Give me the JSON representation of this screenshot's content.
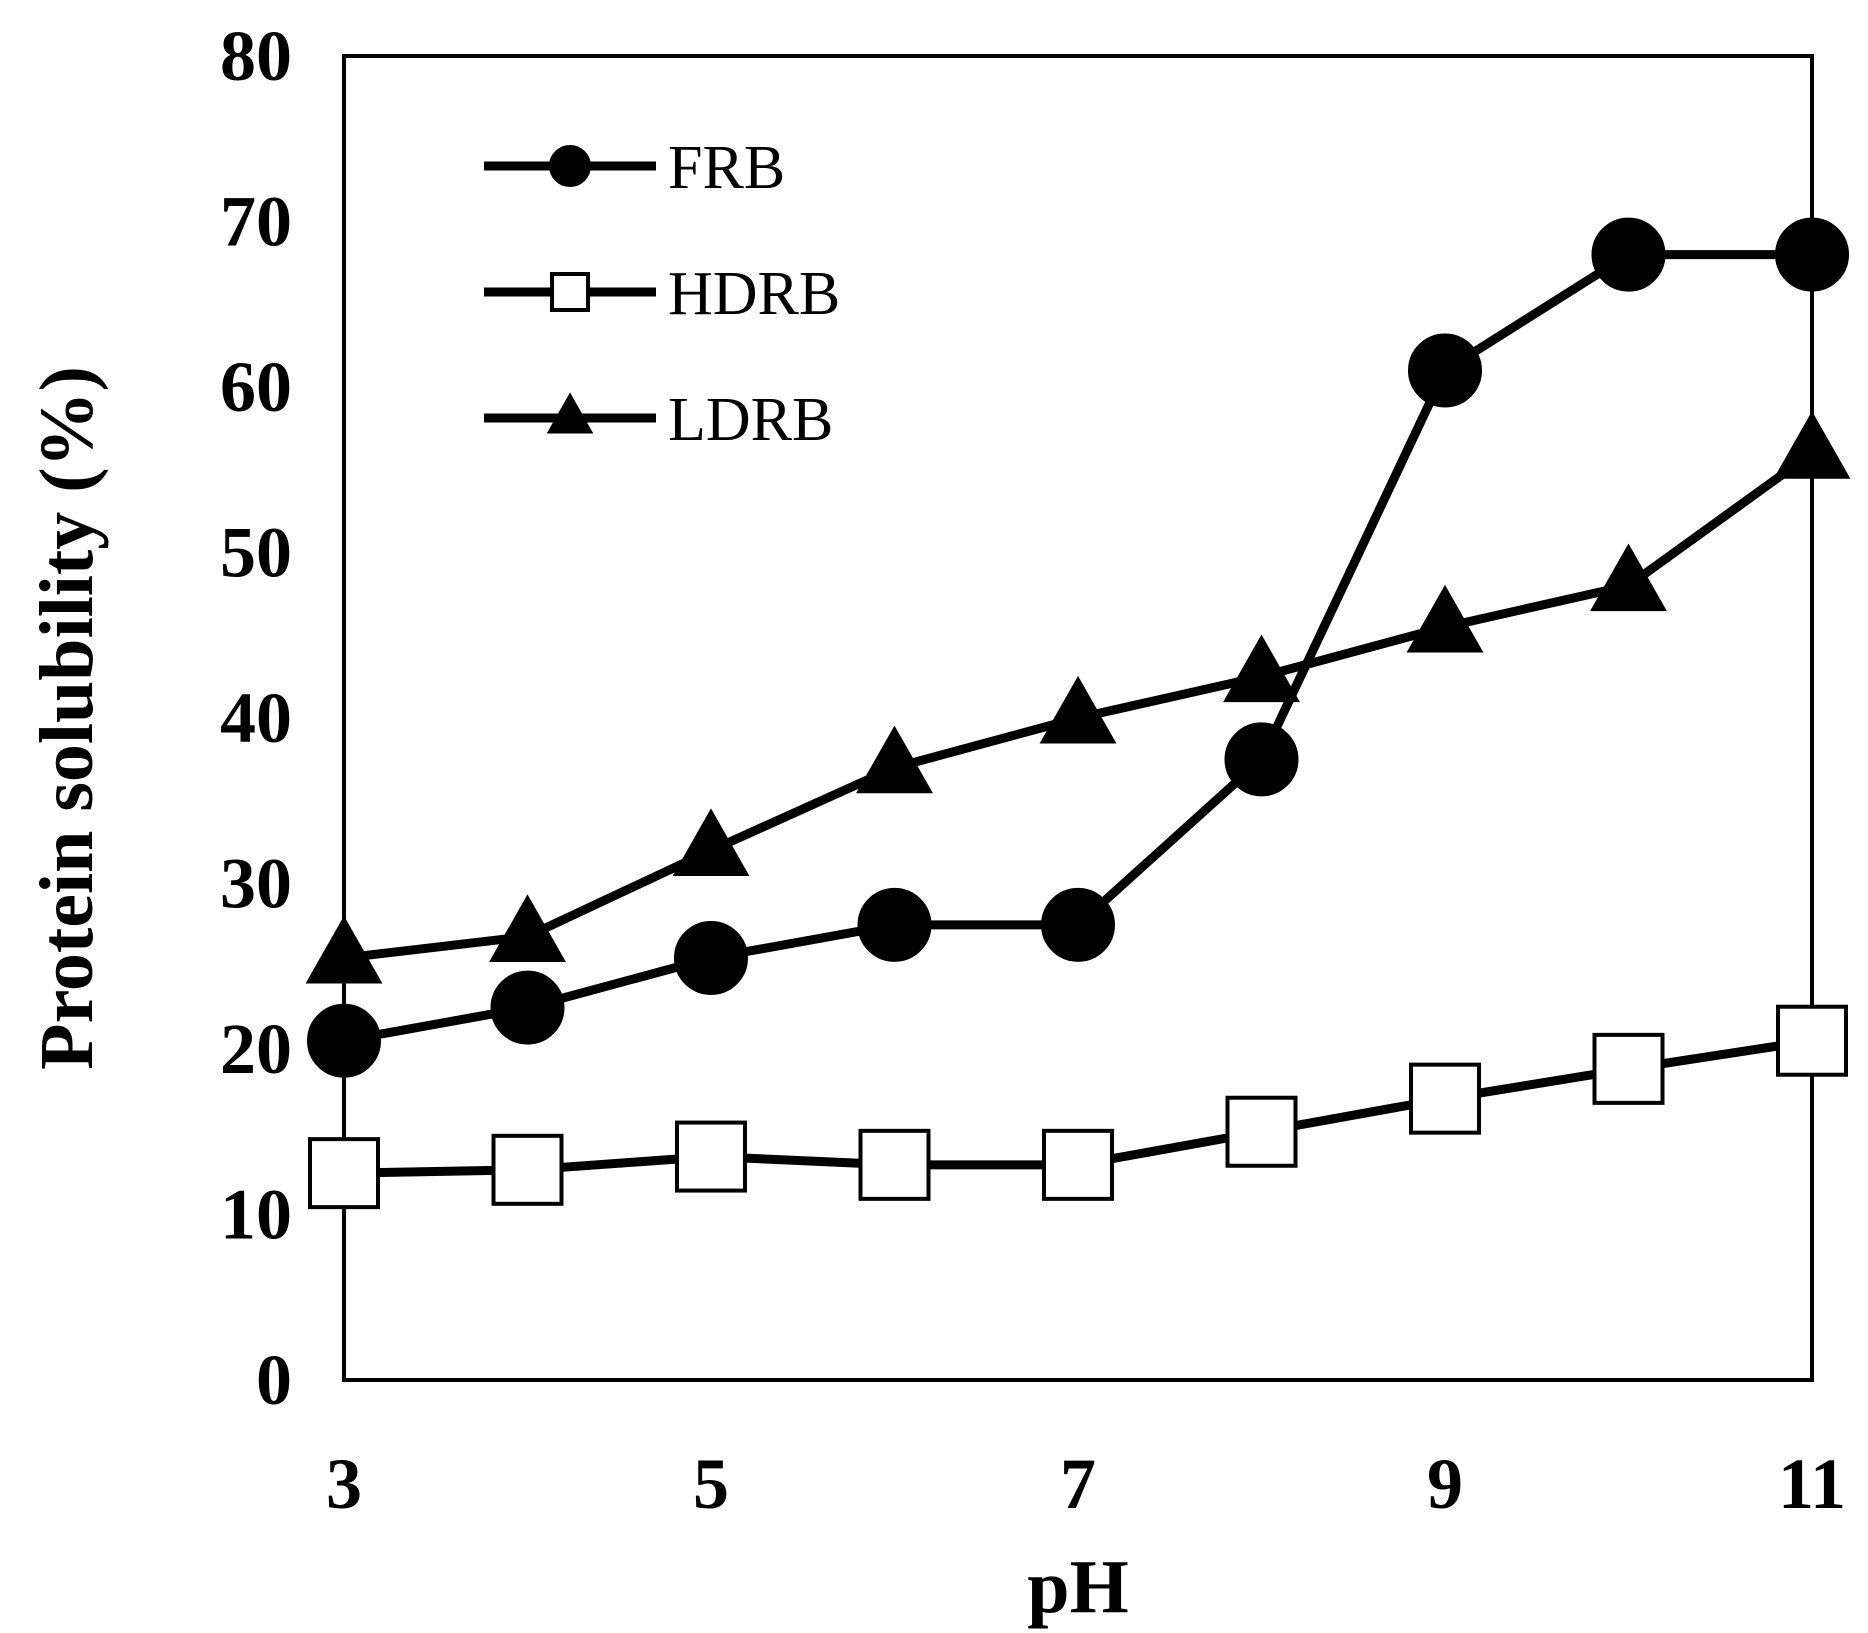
{
  "chart_data": {
    "type": "line",
    "title": "",
    "xlabel": "pH",
    "ylabel": "Protein solubility (%)",
    "xlim": [
      3,
      11
    ],
    "ylim": [
      0,
      80
    ],
    "xticks": [
      3,
      5,
      7,
      9,
      11
    ],
    "xtick_labels": [
      "3",
      "5",
      "7",
      "9",
      "11"
    ],
    "yticks": [
      0,
      10,
      20,
      30,
      40,
      50,
      60,
      70,
      80
    ],
    "ytick_labels": [
      "0",
      "10",
      "20",
      "30",
      "40",
      "50",
      "60",
      "70",
      "80"
    ],
    "grid": false,
    "legend_position": "top-left",
    "x": [
      3,
      4,
      5,
      6,
      7,
      8,
      9,
      10,
      11
    ],
    "series": [
      {
        "name": "FRB",
        "marker": "filled-circle",
        "color": "#000000",
        "values": [
          20.5,
          22.5,
          25.5,
          27.5,
          27.5,
          37.5,
          61,
          68,
          68
        ]
      },
      {
        "name": "HDRB",
        "marker": "open-square",
        "color": "#000000",
        "values": [
          12.5,
          12.7,
          13.5,
          13,
          13,
          15,
          17,
          18.8,
          20.5
        ]
      },
      {
        "name": "LDRB",
        "marker": "filled-triangle",
        "color": "#000000",
        "values": [
          25.5,
          26.8,
          32,
          37,
          40,
          42.5,
          45.5,
          48,
          56
        ]
      }
    ]
  }
}
